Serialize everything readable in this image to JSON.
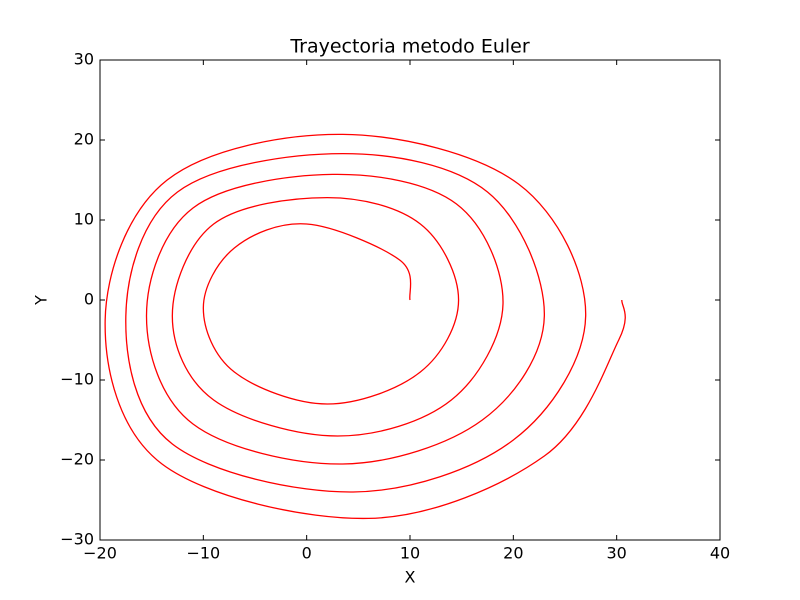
{
  "chart_data": {
    "type": "line",
    "title": "Trayectoria metodo Euler",
    "xlabel": "X",
    "ylabel": "Y",
    "color": "#ff0000",
    "x": [
      10,
      9,
      0,
      -7,
      -10,
      -7,
      2,
      11,
      14.7,
      11,
      2,
      -9,
      -13,
      -9,
      3,
      14,
      19,
      14.5,
      2.5,
      -11,
      -15.5,
      -11,
      3.5,
      17,
      23,
      17.5,
      3.5,
      -12.5,
      -17.5,
      -13,
      4.5,
      20,
      27,
      20.5,
      3.5,
      -13.5,
      -19.5,
      -14,
      6,
      23,
      30.2,
      30.5
    ],
    "series": [
      {
        "color": "#ff0000",
        "values": [
          0,
          5,
          9.5,
          6.5,
          -1,
          -9,
          -13,
          -9,
          0,
          9.5,
          12.8,
          9.5,
          -2,
          -12.5,
          -17,
          -12.5,
          -0.5,
          12,
          15.7,
          11.5,
          -2,
          -15.5,
          -20.5,
          -15,
          -2,
          13.5,
          18.3,
          13.5,
          -2,
          -18,
          -24,
          -17.5,
          -2,
          14.5,
          20.7,
          15,
          -2.5,
          -20.5,
          -27.3,
          -19.5,
          -5,
          0
        ]
      }
    ],
    "xlim": [
      -20,
      40
    ],
    "ylim": [
      -30,
      30
    ],
    "xticks": [
      {
        "value": -20,
        "label": "−20"
      },
      {
        "value": -10,
        "label": "−10"
      },
      0,
      10,
      20,
      30,
      40
    ],
    "yticks": [
      {
        "value": -30,
        "label": "−30"
      },
      {
        "value": -20,
        "label": "−20"
      },
      {
        "value": -10,
        "label": "−10"
      },
      0,
      10,
      20,
      30
    ],
    "grid": false
  }
}
